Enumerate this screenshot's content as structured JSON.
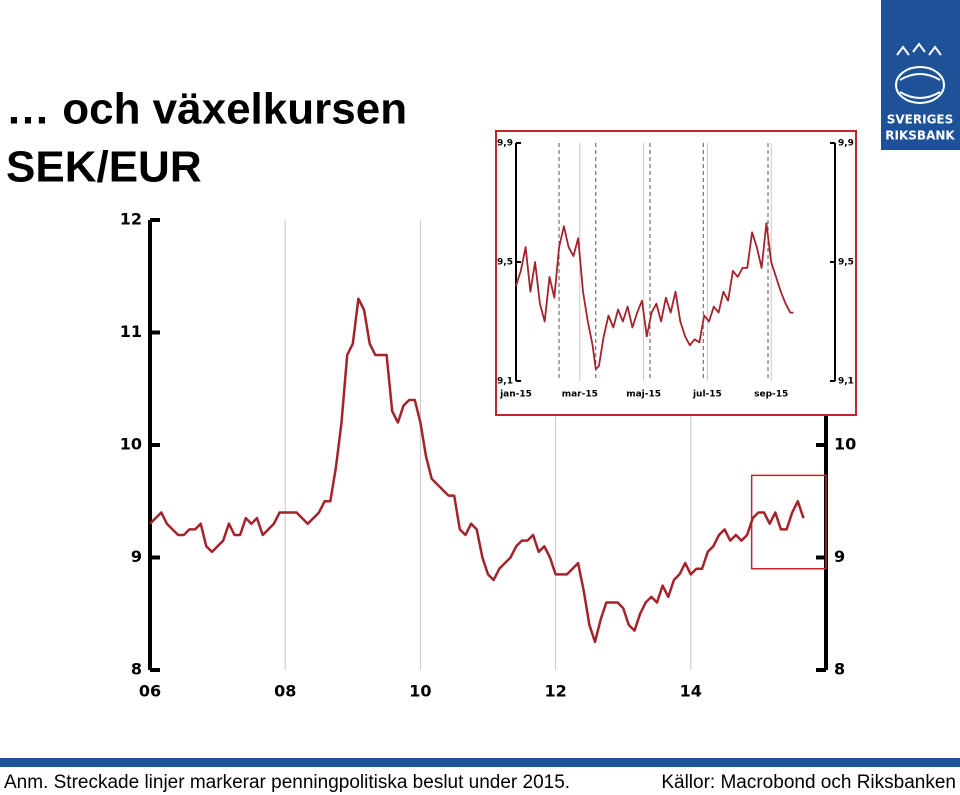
{
  "title": [
    "… och växelkursen",
    "SEK/EUR"
  ],
  "logo_text": [
    "SVERIGES",
    "RIKSBANK"
  ],
  "footnote": "Anm. Streckade linjer markerar penningpolitiska beslut under 2015.",
  "source": "Källor: Macrobond och Riksbanken",
  "chart_data": [
    {
      "type": "line",
      "x": [
        2006.0,
        2006.083,
        2006.167,
        2006.25,
        2006.333,
        2006.417,
        2006.5,
        2006.583,
        2006.667,
        2006.75,
        2006.833,
        2006.917,
        2007.0,
        2007.083,
        2007.167,
        2007.25,
        2007.333,
        2007.417,
        2007.5,
        2007.583,
        2007.667,
        2007.75,
        2007.833,
        2007.917,
        2008.0,
        2008.083,
        2008.167,
        2008.25,
        2008.333,
        2008.417,
        2008.5,
        2008.583,
        2008.667,
        2008.75,
        2008.833,
        2008.917,
        2009.0,
        2009.083,
        2009.167,
        2009.25,
        2009.333,
        2009.417,
        2009.5,
        2009.583,
        2009.667,
        2009.75,
        2009.833,
        2009.917,
        2010.0,
        2010.083,
        2010.167,
        2010.25,
        2010.333,
        2010.417,
        2010.5,
        2010.583,
        2010.667,
        2010.75,
        2010.833,
        2010.917,
        2011.0,
        2011.083,
        2011.167,
        2011.25,
        2011.333,
        2011.417,
        2011.5,
        2011.583,
        2011.667,
        2011.75,
        2011.833,
        2011.917,
        2012.0,
        2012.083,
        2012.167,
        2012.25,
        2012.333,
        2012.417,
        2012.5,
        2012.583,
        2012.667,
        2012.75,
        2012.833,
        2012.917,
        2013.0,
        2013.083,
        2013.167,
        2013.25,
        2013.333,
        2013.417,
        2013.5,
        2013.583,
        2013.667,
        2013.75,
        2013.833,
        2013.917,
        2014.0,
        2014.083,
        2014.167,
        2014.25,
        2014.333,
        2014.417,
        2014.5,
        2014.583,
        2014.667,
        2014.75,
        2014.833,
        2014.917,
        2015.0,
        2015.083,
        2015.167,
        2015.25,
        2015.333,
        2015.417,
        2015.5,
        2015.583,
        2015.667
      ],
      "series": [
        {
          "color": "#a4232a",
          "values": [
            9.3,
            9.35,
            9.4,
            9.3,
            9.25,
            9.2,
            9.2,
            9.25,
            9.25,
            9.3,
            9.1,
            9.05,
            9.1,
            9.15,
            9.3,
            9.2,
            9.2,
            9.35,
            9.3,
            9.35,
            9.2,
            9.25,
            9.3,
            9.4,
            9.4,
            9.4,
            9.4,
            9.35,
            9.3,
            9.35,
            9.4,
            9.5,
            9.5,
            9.8,
            10.2,
            10.8,
            10.9,
            11.3,
            11.2,
            10.9,
            10.8,
            10.8,
            10.8,
            10.3,
            10.2,
            10.35,
            10.4,
            10.4,
            10.2,
            9.9,
            9.7,
            9.65,
            9.6,
            9.55,
            9.55,
            9.25,
            9.2,
            9.3,
            9.25,
            9.0,
            8.85,
            8.8,
            8.9,
            8.95,
            9.0,
            9.1,
            9.15,
            9.15,
            9.2,
            9.05,
            9.1,
            9.0,
            8.85,
            8.85,
            8.85,
            8.9,
            8.95,
            8.7,
            8.4,
            8.25,
            8.45,
            8.6,
            8.6,
            8.6,
            8.55,
            8.4,
            8.35,
            8.5,
            8.6,
            8.65,
            8.6,
            8.75,
            8.65,
            8.8,
            8.85,
            8.95,
            8.85,
            8.9,
            8.9,
            9.05,
            9.1,
            9.2,
            9.25,
            9.15,
            9.2,
            9.15,
            9.2,
            9.35,
            9.4,
            9.4,
            9.3,
            9.4,
            9.25,
            9.25,
            9.4,
            9.5,
            9.35
          ]
        }
      ],
      "xlim": [
        2006,
        2016
      ],
      "xticks": [
        {
          "value": 2006,
          "label": "06"
        },
        {
          "value": 2008,
          "label": "08"
        },
        {
          "value": 2010,
          "label": "10"
        },
        {
          "value": 2012,
          "label": "12"
        },
        {
          "value": 2014,
          "label": "14"
        }
      ],
      "ylim": [
        8,
        12
      ],
      "yticks": [
        8,
        9,
        10,
        11,
        12
      ],
      "grid": true,
      "highlight": {
        "xlim": [
          2014.9,
          2016
        ],
        "ylim": [
          8.9,
          9.73
        ]
      }
    },
    {
      "type": "line",
      "x": [
        0,
        0.15,
        0.3,
        0.45,
        0.6,
        0.75,
        0.9,
        1.05,
        1.2,
        1.35,
        1.5,
        1.65,
        1.8,
        1.95,
        2.1,
        2.25,
        2.4,
        2.5,
        2.6,
        2.75,
        2.9,
        3.05,
        3.2,
        3.35,
        3.5,
        3.65,
        3.8,
        3.95,
        4.1,
        4.25,
        4.4,
        4.55,
        4.7,
        4.85,
        5.0,
        5.15,
        5.3,
        5.45,
        5.6,
        5.75,
        5.9,
        6.05,
        6.2,
        6.35,
        6.5,
        6.65,
        6.8,
        6.95,
        7.1,
        7.25,
        7.4,
        7.55,
        7.7,
        7.85,
        8.0,
        8.15,
        8.3,
        8.45,
        8.6,
        8.7
      ],
      "series": [
        {
          "color": "#a4232a",
          "values": [
            9.42,
            9.47,
            9.55,
            9.4,
            9.5,
            9.36,
            9.3,
            9.45,
            9.38,
            9.55,
            9.62,
            9.55,
            9.52,
            9.58,
            9.4,
            9.3,
            9.22,
            9.14,
            9.15,
            9.25,
            9.32,
            9.28,
            9.34,
            9.3,
            9.35,
            9.28,
            9.33,
            9.37,
            9.25,
            9.33,
            9.36,
            9.3,
            9.38,
            9.33,
            9.4,
            9.3,
            9.25,
            9.22,
            9.24,
            9.23,
            9.32,
            9.3,
            9.35,
            9.33,
            9.4,
            9.37,
            9.47,
            9.45,
            9.48,
            9.48,
            9.6,
            9.55,
            9.48,
            9.63,
            9.5,
            9.45,
            9.4,
            9.36,
            9.33,
            9.33
          ]
        }
      ],
      "xlim": [
        0,
        10
      ],
      "xticks": [
        {
          "value": 0,
          "label": "jan-15"
        },
        {
          "value": 2,
          "label": "mar-15"
        },
        {
          "value": 4,
          "label": "maj-15"
        },
        {
          "value": 6,
          "label": "jul-15"
        },
        {
          "value": 8,
          "label": "sep-15"
        }
      ],
      "ylim": [
        9.1,
        9.9
      ],
      "yticks": [
        {
          "value": 9.1,
          "label": "9,1"
        },
        {
          "value": 9.5,
          "label": "9,5"
        },
        {
          "value": 9.9,
          "label": "9,9"
        }
      ],
      "policy_decisions": [
        1.35,
        2.5,
        4.2,
        5.87,
        7.9
      ],
      "grid": true
    }
  ]
}
